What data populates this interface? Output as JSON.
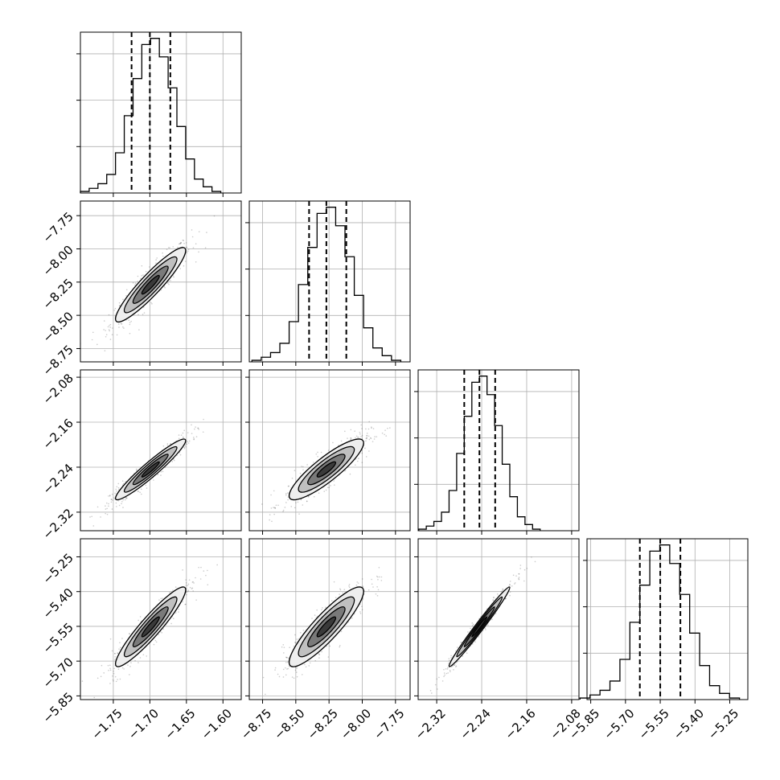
{
  "chart_data": {
    "type": "corner",
    "parameters": [
      {
        "ticks": [
          -1.75,
          -1.7,
          -1.65,
          -1.6
        ],
        "tick_labels": [
          "−1.75",
          "−1.70",
          "−1.65",
          "−1.60"
        ],
        "range": [
          -1.795,
          -1.575
        ],
        "quantiles": [
          -1.725,
          -1.7,
          -1.672
        ],
        "mean": -1.699,
        "sd": 0.024
      },
      {
        "ticks": [
          -8.75,
          -8.5,
          -8.25,
          -8.0,
          -7.75
        ],
        "tick_labels": [
          "−8.75",
          "−8.50",
          "−8.25",
          "−8.00",
          "−7.75"
        ],
        "range": [
          -8.85,
          -7.64
        ],
        "quantiles": [
          -8.4,
          -8.27,
          -8.12
        ],
        "mean": -8.27,
        "sd": 0.14
      },
      {
        "ticks": [
          -2.32,
          -2.24,
          -2.16,
          -2.08
        ],
        "tick_labels": [
          "−2.32",
          "−2.24",
          "−2.16",
          "−2.08"
        ],
        "range": [
          -2.353,
          -2.067
        ],
        "quantiles": [
          -2.271,
          -2.244,
          -2.216
        ],
        "mean": -2.244,
        "sd": 0.027
      },
      {
        "ticks": [
          -5.85,
          -5.7,
          -5.55,
          -5.4,
          -5.25
        ],
        "tick_labels": [
          "−5.85",
          "−5.70",
          "−5.55",
          "−5.40",
          "−5.25"
        ],
        "range": [
          -5.866,
          -5.172
        ],
        "quantiles": [
          -5.638,
          -5.55,
          -5.463
        ],
        "mean": -5.552,
        "sd": 0.086
      }
    ],
    "histograms": [
      [
        1,
        3,
        6,
        12,
        26,
        50,
        74,
        96,
        100,
        88,
        68,
        43,
        22,
        9,
        4,
        1
      ],
      [
        1,
        3,
        6,
        12,
        26,
        50,
        74,
        96,
        100,
        88,
        68,
        43,
        22,
        9,
        4,
        1
      ],
      [
        1,
        3,
        6,
        12,
        26,
        50,
        74,
        96,
        100,
        88,
        68,
        43,
        22,
        9,
        4,
        1
      ],
      [
        1,
        3,
        6,
        12,
        26,
        50,
        74,
        96,
        100,
        88,
        68,
        43,
        22,
        9,
        4,
        1
      ]
    ],
    "correlations": {
      "1-0": 0.92,
      "2-0": 0.95,
      "2-1": 0.87,
      "3-0": 0.93,
      "3-1": 0.89,
      "3-2": 0.985
    },
    "contour_levels_sigma": [
      0.5,
      1.0,
      1.5,
      2.0
    ],
    "contour_fill_colors": [
      "#3a3a3a",
      "#7a7a7a",
      "#c0c0c0",
      "#eeeeee"
    ],
    "grid": true,
    "xlabel": "",
    "ylabel": "",
    "title": ""
  }
}
